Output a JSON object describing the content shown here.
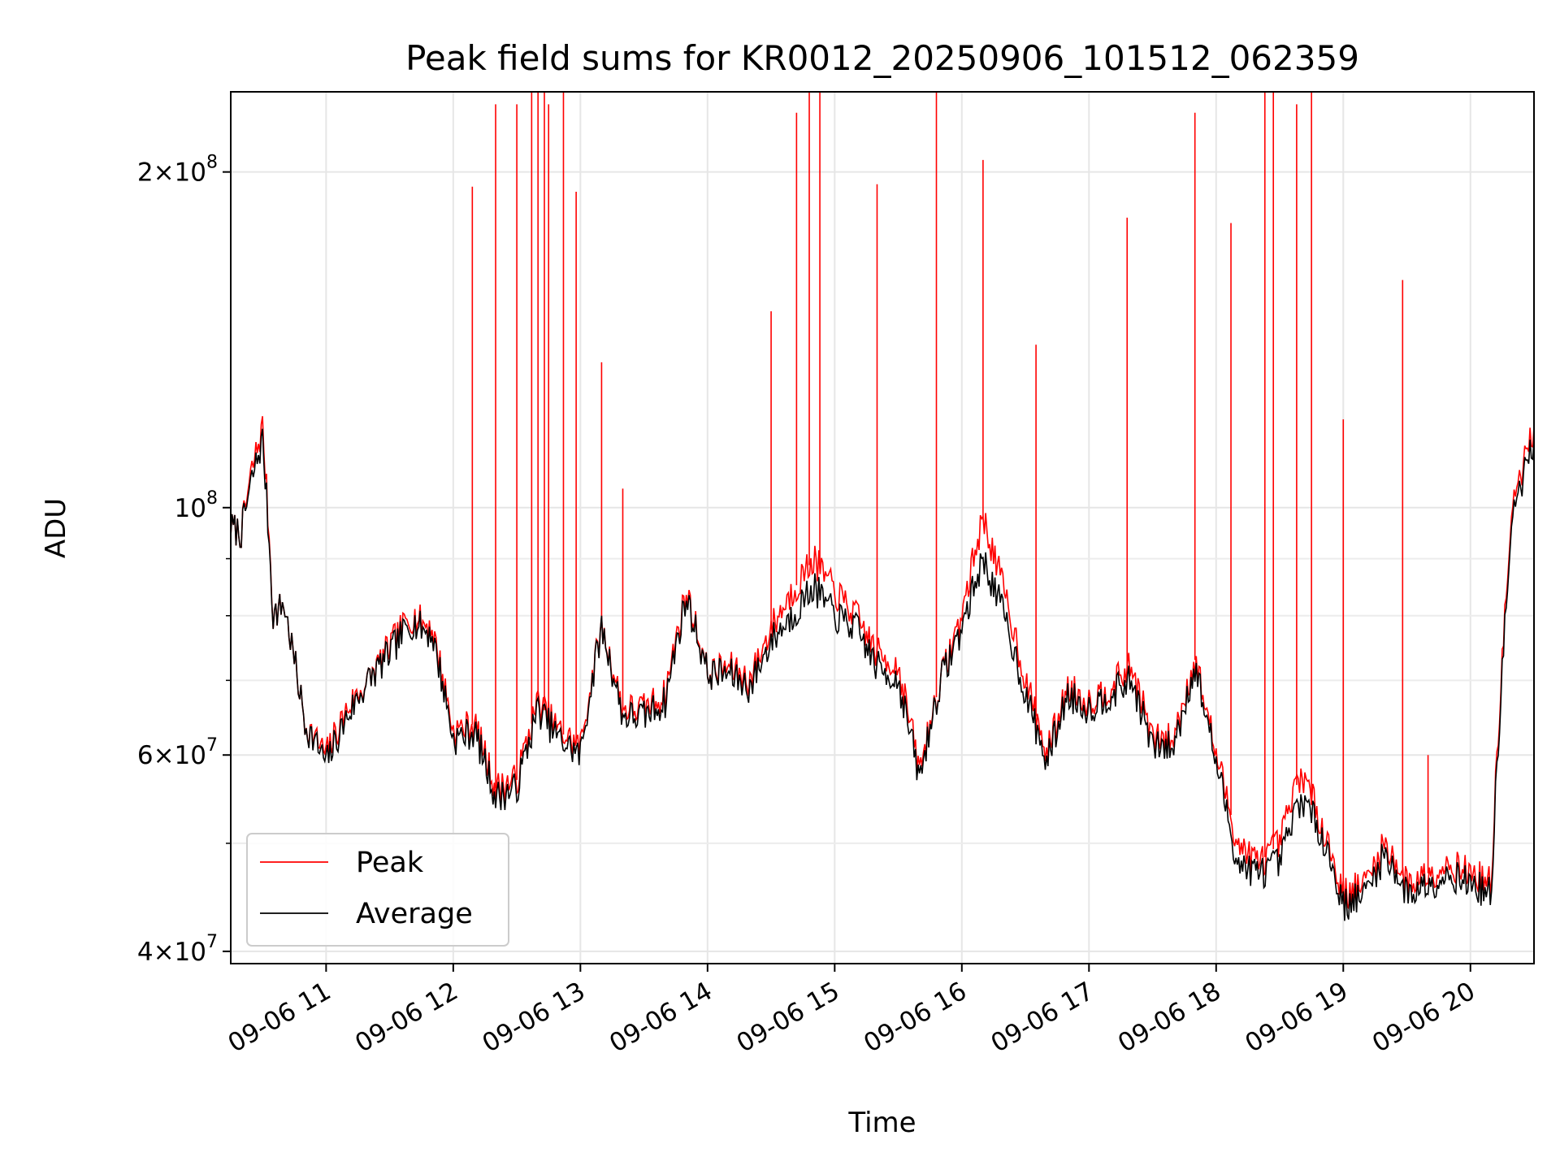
{
  "chart_data": {
    "type": "line",
    "title": "Peak field sums for KR0012_20250906_101512_062359",
    "xlabel": "Time",
    "ylabel": "ADU",
    "yscale": "log",
    "grid": true,
    "legend_position": "bottom-left",
    "xlim": [
      "2025-09-06T10:15",
      "2025-09-06T20:30"
    ],
    "ylim": [
      39000000,
      236000000
    ],
    "x_ticks": [
      "09-06 11",
      "09-06 12",
      "09-06 13",
      "09-06 14",
      "09-06 15",
      "09-06 16",
      "09-06 17",
      "09-06 18",
      "09-06 19",
      "09-06 20"
    ],
    "y_ticks": [
      {
        "value": 40000000,
        "mant": "4",
        "base": "10",
        "exp": "7"
      },
      {
        "value": 60000000,
        "mant": "6",
        "base": "10",
        "exp": "7"
      },
      {
        "value": 100000000,
        "mant": "",
        "base": "10",
        "exp": "8"
      },
      {
        "value": 200000000,
        "mant": "2",
        "base": "10",
        "exp": "8"
      }
    ],
    "times": [
      "10:15",
      "10:20",
      "10:25",
      "10:30",
      "10:35",
      "10:40",
      "10:50",
      "11:00",
      "11:10",
      "11:20",
      "11:30",
      "11:40",
      "11:50",
      "12:00",
      "12:10",
      "12:20",
      "12:30",
      "12:40",
      "12:50",
      "13:00",
      "13:10",
      "13:20",
      "13:30",
      "13:40",
      "13:50",
      "14:00",
      "14:10",
      "14:20",
      "14:30",
      "14:40",
      "14:50",
      "15:00",
      "15:10",
      "15:20",
      "15:30",
      "15:40",
      "15:50",
      "16:00",
      "16:10",
      "16:20",
      "16:30",
      "16:40",
      "16:50",
      "17:00",
      "17:10",
      "17:20",
      "17:30",
      "17:40",
      "17:50",
      "18:00",
      "18:10",
      "18:20",
      "18:30",
      "18:40",
      "18:50",
      "19:00",
      "19:10",
      "19:20",
      "19:30",
      "19:40",
      "19:50",
      "20:00",
      "20:10",
      "20:20",
      "20:30"
    ],
    "series": [
      {
        "name": "Peak",
        "color": "#ff0000",
        "values": [
          96,
          95,
          108,
          118,
          80,
          82,
          64,
          60,
          66,
          70,
          75,
          80,
          78,
          63,
          64,
          56,
          57,
          67,
          63,
          61,
          78,
          66,
          66,
          68,
          84,
          71,
          72,
          70,
          78,
          84,
          90,
          84,
          80,
          74,
          72,
          58,
          70,
          80,
          98,
          84,
          70,
          60,
          69,
          67,
          69,
          72,
          62,
          62,
          73,
          60,
          50,
          48,
          50,
          58,
          52,
          45,
          46,
          50,
          46,
          47,
          48,
          47,
          46,
          100,
          118
        ],
        "spikes": [
          {
            "t": "12:09",
            "v": 194000000
          },
          {
            "t": "12:20",
            "v": 230000000
          },
          {
            "t": "12:30",
            "v": 230000000
          },
          {
            "t": "12:37",
            "v": 236000000
          },
          {
            "t": "12:40",
            "v": 236000000
          },
          {
            "t": "12:43",
            "v": 236000000
          },
          {
            "t": "12:45",
            "v": 230000000
          },
          {
            "t": "12:52",
            "v": 236000000
          },
          {
            "t": "12:58",
            "v": 192000000
          },
          {
            "t": "13:10",
            "v": 135000000
          },
          {
            "t": "13:20",
            "v": 104000000
          },
          {
            "t": "14:30",
            "v": 150000000
          },
          {
            "t": "14:42",
            "v": 226000000
          },
          {
            "t": "14:48",
            "v": 236000000
          },
          {
            "t": "14:53",
            "v": 236000000
          },
          {
            "t": "15:20",
            "v": 195000000
          },
          {
            "t": "15:48",
            "v": 236000000
          },
          {
            "t": "16:10",
            "v": 205000000
          },
          {
            "t": "16:35",
            "v": 140000000
          },
          {
            "t": "17:18",
            "v": 182000000
          },
          {
            "t": "17:50",
            "v": 226000000
          },
          {
            "t": "18:07",
            "v": 180000000
          },
          {
            "t": "18:23",
            "v": 236000000
          },
          {
            "t": "18:27",
            "v": 236000000
          },
          {
            "t": "18:38",
            "v": 230000000
          },
          {
            "t": "18:45",
            "v": 236000000
          },
          {
            "t": "19:00",
            "v": 120000000
          },
          {
            "t": "19:28",
            "v": 160000000
          },
          {
            "t": "19:40",
            "v": 60000000
          }
        ]
      },
      {
        "name": "Average",
        "color": "#000000",
        "values": [
          96,
          95,
          106,
          115,
          80,
          82,
          64,
          59,
          65,
          70,
          74,
          79,
          77,
          62,
          63,
          55,
          56,
          66,
          62,
          60,
          78,
          65,
          65,
          67,
          83,
          71,
          71,
          69,
          76,
          80,
          85,
          80,
          78,
          72,
          70,
          57,
          70,
          78,
          90,
          80,
          68,
          59,
          68,
          66,
          68,
          70,
          61,
          61,
          72,
          59,
          48,
          47,
          48,
          55,
          51,
          44,
          45,
          49,
          45,
          46,
          47,
          46,
          45,
          98,
          115
        ]
      }
    ]
  }
}
